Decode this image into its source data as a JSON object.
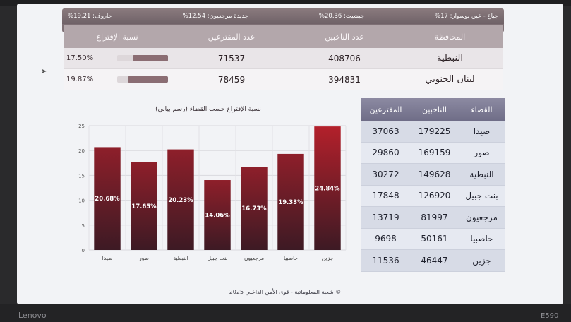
{
  "device": {
    "brand": "Lenovo",
    "model": "E590"
  },
  "stats": [
    "جباع - عين بوسوار: 17%",
    "جبشيت: 20.36%",
    "جديدة مرجعيون: 12.54%",
    "حاروف: 19.21%"
  ],
  "top_table": {
    "headers": {
      "gov": "المحافظة",
      "registered": "عدد الناخبين",
      "voters": "عدد المقترعين",
      "pct": "نسبة الإقتراع"
    },
    "rows": [
      {
        "gov": "النبطية",
        "registered": "408706",
        "voters": "71537",
        "pct_label": "17.50%",
        "pct_value": 17.5
      },
      {
        "gov": "لبنان الجنوبي",
        "registered": "394831",
        "voters": "78459",
        "pct_label": "19.87%",
        "pct_value": 19.87
      }
    ]
  },
  "chart_data": {
    "type": "bar",
    "title": "نسبة الإقتراع حسب القضاء (رسم بياني)",
    "categories": [
      "صيدا",
      "صور",
      "النبطية",
      "بنت جبيل",
      "مرجعيون",
      "حاصبيا",
      "جزين"
    ],
    "values": [
      20.68,
      17.65,
      20.23,
      14.06,
      16.73,
      19.33,
      24.84
    ],
    "data_labels": [
      "20.68%",
      "17.65%",
      "20.23%",
      "14.06%",
      "16.73%",
      "19.33%",
      "24.84%"
    ],
    "y_ticks": [
      "0",
      "5",
      "10",
      "15",
      "20",
      "25"
    ],
    "ylim": [
      0,
      25
    ],
    "grid": true,
    "colors": {
      "bar_top": "#8e1f2a",
      "bar_bottom": "#3d1a24",
      "highlight": "#b3202b"
    }
  },
  "right_table": {
    "headers": {
      "district": "القضاء",
      "registered": "الناخبين",
      "voters": "المقترعين"
    },
    "rows": [
      {
        "district": "صيدا",
        "registered": "179225",
        "voters": "37063"
      },
      {
        "district": "صور",
        "registered": "169159",
        "voters": "29860"
      },
      {
        "district": "النبطية",
        "registered": "149628",
        "voters": "30272"
      },
      {
        "district": "بنت جبيل",
        "registered": "126920",
        "voters": "17848"
      },
      {
        "district": "مرجعيون",
        "registered": "81997",
        "voters": "13719"
      },
      {
        "district": "حاصبيا",
        "registered": "50161",
        "voters": "9698"
      },
      {
        "district": "جزين",
        "registered": "46447",
        "voters": "11536"
      }
    ]
  },
  "footer": "© شعبة المعلوماتية - قوى الأمن الداخلي 2025"
}
